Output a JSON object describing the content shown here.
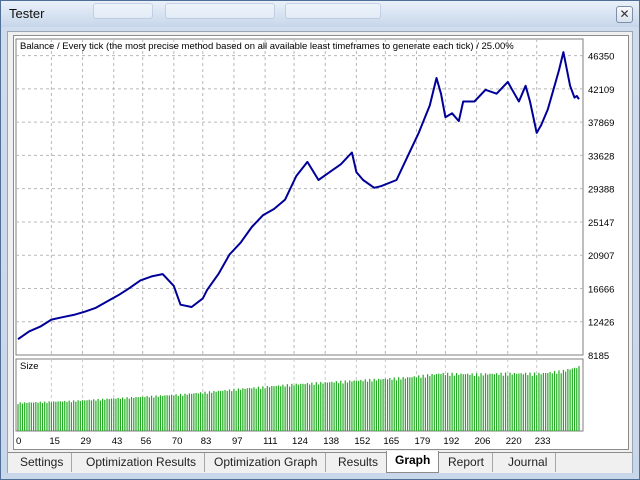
{
  "window": {
    "title": "Tester",
    "close_glyph": "✕"
  },
  "chart_data": [
    {
      "type": "line",
      "title": "Balance / Every tick (the most precise method based on all available least timeframes to generate each tick) / 25.00%",
      "series": [
        {
          "name": "Balance",
          "color": "#000099",
          "x": [
            0,
            5,
            10,
            15,
            20,
            25,
            30,
            35,
            40,
            45,
            50,
            55,
            60,
            65,
            70,
            73,
            78,
            83,
            85,
            90,
            95,
            100,
            105,
            110,
            115,
            120,
            125,
            130,
            135,
            140,
            145,
            150,
            152,
            155,
            160,
            163,
            170,
            175,
            180,
            185,
            188,
            190,
            192,
            195,
            198,
            200,
            205,
            210,
            215,
            220,
            222,
            225,
            228,
            230,
            233,
            235,
            238,
            240,
            243,
            245,
            248,
            250,
            251,
            252
          ],
          "y": [
            10200,
            11200,
            11800,
            12700,
            13000,
            13300,
            13700,
            14200,
            15000,
            15800,
            16700,
            17700,
            18200,
            18500,
            17000,
            14600,
            14300,
            15400,
            16500,
            18500,
            21000,
            22500,
            24500,
            26000,
            26800,
            28000,
            31000,
            32800,
            30500,
            31500,
            32500,
            34000,
            31500,
            30500,
            29500,
            29700,
            30500,
            33500,
            36500,
            40000,
            43500,
            41500,
            38500,
            39000,
            38000,
            40500,
            40500,
            42000,
            41500,
            43000,
            42000,
            40500,
            42500,
            40500,
            36500,
            37500,
            39500,
            41500,
            44500,
            46800,
            42500,
            41000,
            41200,
            40800
          ]
        },
        {
          "name": "Size",
          "color": "#22aa22",
          "x": [
            0,
            25,
            50,
            75,
            100,
            125,
            150,
            175,
            190,
            205,
            220,
            235,
            245,
            252
          ],
          "y": [
            0.42,
            0.45,
            0.5,
            0.55,
            0.63,
            0.7,
            0.75,
            0.8,
            0.86,
            0.85,
            0.86,
            0.86,
            0.9,
            0.96
          ]
        }
      ],
      "y_ticks": [
        8185,
        12426,
        16666,
        20907,
        25147,
        29388,
        33628,
        37869,
        42109,
        46350
      ],
      "ylim": [
        8185,
        48470
      ],
      "x_ticks": [
        0,
        15,
        29,
        43,
        56,
        70,
        83,
        97,
        111,
        124,
        138,
        152,
        165,
        179,
        192,
        206,
        220,
        233
      ],
      "xlim": [
        0,
        252
      ],
      "grid": true,
      "sub_panel_label": "Size"
    }
  ],
  "tabs": [
    {
      "label": "Settings",
      "active": false
    },
    {
      "label": "Optimization Results",
      "active": false
    },
    {
      "label": "Optimization Graph",
      "active": false
    },
    {
      "label": "Results",
      "active": false
    },
    {
      "label": "Graph",
      "active": true
    },
    {
      "label": "Report",
      "active": false
    },
    {
      "label": "Journal",
      "active": false
    }
  ]
}
